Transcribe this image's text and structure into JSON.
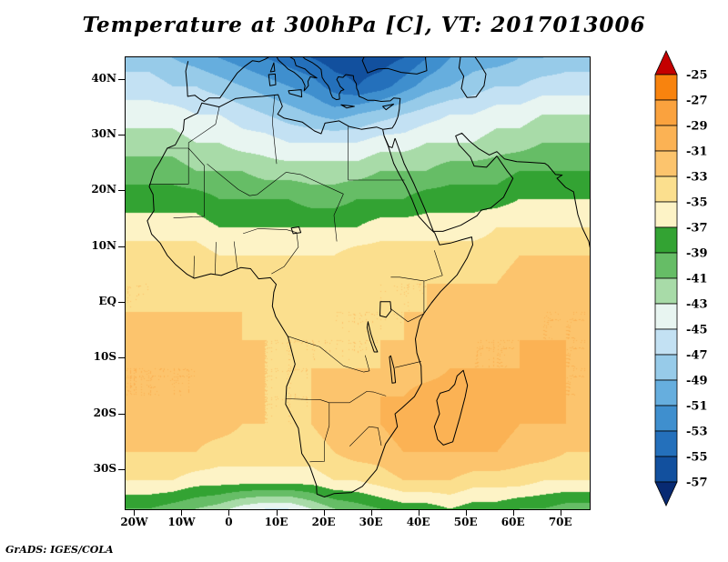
{
  "title": "Temperature at 300hPa [C], VT: 2017013006",
  "footer": "GrADS: IGES/COLA",
  "chart_data": {
    "type": "heatmap",
    "title": "Temperature at 300hPa [C], VT: 2017013006",
    "variable": "Temperature",
    "level": "300hPa",
    "units": "C",
    "valid_time": "2017013006",
    "projection": "latlon",
    "lon_range": [
      -22,
      76
    ],
    "lat_range": [
      -37,
      44
    ],
    "x_ticks": [
      {
        "label": "20W",
        "lon": -20
      },
      {
        "label": "10W",
        "lon": -10
      },
      {
        "label": "0",
        "lon": 0
      },
      {
        "label": "10E",
        "lon": 10
      },
      {
        "label": "20E",
        "lon": 20
      },
      {
        "label": "30E",
        "lon": 30
      },
      {
        "label": "40E",
        "lon": 40
      },
      {
        "label": "50E",
        "lon": 50
      },
      {
        "label": "60E",
        "lon": 60
      },
      {
        "label": "70E",
        "lon": 70
      }
    ],
    "y_ticks": [
      {
        "label": "40N",
        "lat": 40
      },
      {
        "label": "30N",
        "lat": 30
      },
      {
        "label": "20N",
        "lat": 20
      },
      {
        "label": "10N",
        "lat": 10
      },
      {
        "label": "EQ",
        "lat": 0
      },
      {
        "label": "10S",
        "lat": -10
      },
      {
        "label": "20S",
        "lat": -20
      },
      {
        "label": "30S",
        "lat": -30
      }
    ],
    "colorbar": {
      "labels": [
        "-25",
        "-27",
        "-29",
        "-31",
        "-33",
        "-35",
        "-37",
        "-39",
        "-41",
        "-43",
        "-45",
        "-47",
        "-49",
        "-51",
        "-53",
        "-55",
        "-57"
      ],
      "above_color": "#c40000",
      "box_colors": [
        "#f8830e",
        "#faa23e",
        "#fbb254",
        "#fcc46d",
        "#fbdf8e",
        "#fdf3c6",
        "#33a333",
        "#66bd66",
        "#a8dba8",
        "#e8f5f1",
        "#c3e1f3",
        "#97cbe9",
        "#66aede",
        "#3f8fce",
        "#2470bb",
        "#12509e"
      ],
      "below_color": "#082a72"
    },
    "grid": {
      "nlon": 21,
      "nlat": 17,
      "lon_start": -22,
      "lon_end": 76,
      "lat_start": 44,
      "lat_end": -37,
      "temps": [
        [
          -48,
          -48,
          -49,
          -50,
          -51,
          -52,
          -53,
          -54,
          -55,
          -56,
          -56,
          -56,
          -55,
          -53,
          -51,
          -50,
          -50,
          -49,
          -49,
          -48,
          -48
        ],
        [
          -46,
          -46,
          -47,
          -47,
          -48,
          -49,
          -50,
          -51,
          -52,
          -54,
          -55,
          -54,
          -52,
          -50,
          -49,
          -48,
          -47,
          -47,
          -46,
          -46,
          -46
        ],
        [
          -44,
          -44,
          -44,
          -45,
          -45,
          -46,
          -47,
          -48,
          -49,
          -50,
          -49,
          -48,
          -47,
          -46,
          -45,
          -45,
          -44,
          -44,
          -43,
          -43,
          -43
        ],
        [
          -42,
          -42,
          -42,
          -43,
          -43,
          -44,
          -44,
          -45,
          -45,
          -45,
          -45,
          -44,
          -44,
          -43,
          -43,
          -43,
          -42,
          -42,
          -41,
          -41,
          -41
        ],
        [
          -40,
          -40,
          -40,
          -41,
          -41,
          -41,
          -42,
          -42,
          -42,
          -42,
          -42,
          -41,
          -41,
          -41,
          -40,
          -40,
          -40,
          -39,
          -39,
          -39,
          -39
        ],
        [
          -38,
          -38,
          -38,
          -38,
          -39,
          -39,
          -39,
          -39,
          -40,
          -40,
          -39,
          -39,
          -39,
          -38,
          -38,
          -38,
          -38,
          -37,
          -37,
          -37,
          -37
        ],
        [
          -36,
          -36,
          -36,
          -36,
          -37,
          -37,
          -37,
          -37,
          -37,
          -37,
          -37,
          -36,
          -36,
          -36,
          -36,
          -36,
          -35,
          -35,
          -35,
          -35,
          -35
        ],
        [
          -34,
          -34,
          -34,
          -34,
          -35,
          -35,
          -35,
          -35,
          -35,
          -35,
          -34,
          -34,
          -34,
          -34,
          -34,
          -34,
          -34,
          -33,
          -33,
          -33,
          -33
        ],
        [
          -33,
          -33,
          -34,
          -34,
          -34,
          -34,
          -34,
          -34,
          -34,
          -34,
          -34,
          -33,
          -33,
          -33,
          -33,
          -33,
          -33,
          -32,
          -32,
          -32,
          -32
        ],
        [
          -33,
          -33,
          -33,
          -33,
          -33,
          -33,
          -34,
          -34,
          -34,
          -33,
          -33,
          -33,
          -33,
          -33,
          -32,
          -32,
          -32,
          -32,
          -31,
          -31,
          -31
        ],
        [
          -32,
          -32,
          -32,
          -32,
          -32,
          -33,
          -33,
          -33,
          -33,
          -33,
          -33,
          -33,
          -33,
          -32,
          -32,
          -31,
          -31,
          -31,
          -31,
          -31,
          -31
        ],
        [
          -31,
          -31,
          -31,
          -31,
          -32,
          -32,
          -33,
          -33,
          -33,
          -33,
          -33,
          -33,
          -32,
          -32,
          -31,
          -31,
          -31,
          -31,
          -30,
          -31,
          -31
        ],
        [
          -31,
          -31,
          -31,
          -31,
          -32,
          -32,
          -33,
          -33,
          -33,
          -32,
          -32,
          -31,
          -31,
          -30,
          -30,
          -30,
          -30,
          -30,
          -30,
          -31,
          -31
        ],
        [
          -32,
          -32,
          -32,
          -32,
          -32,
          -33,
          -33,
          -33,
          -33,
          -32,
          -31,
          -31,
          -30,
          -30,
          -30,
          -30,
          -30,
          -31,
          -31,
          -31,
          -32
        ],
        [
          -33,
          -33,
          -33,
          -33,
          -34,
          -34,
          -34,
          -34,
          -34,
          -33,
          -32,
          -32,
          -31,
          -31,
          -31,
          -31,
          -31,
          -32,
          -32,
          -33,
          -33
        ],
        [
          -35,
          -35,
          -35,
          -36,
          -36,
          -36,
          -36,
          -36,
          -36,
          -35,
          -35,
          -34,
          -33,
          -33,
          -33,
          -34,
          -34,
          -34,
          -35,
          -35,
          -35
        ],
        [
          -39,
          -39,
          -40,
          -41,
          -42,
          -44,
          -45,
          -45,
          -43,
          -41,
          -40,
          -39,
          -38,
          -38,
          -37,
          -38,
          -38,
          -39,
          -39,
          -40,
          -40
        ]
      ]
    }
  }
}
